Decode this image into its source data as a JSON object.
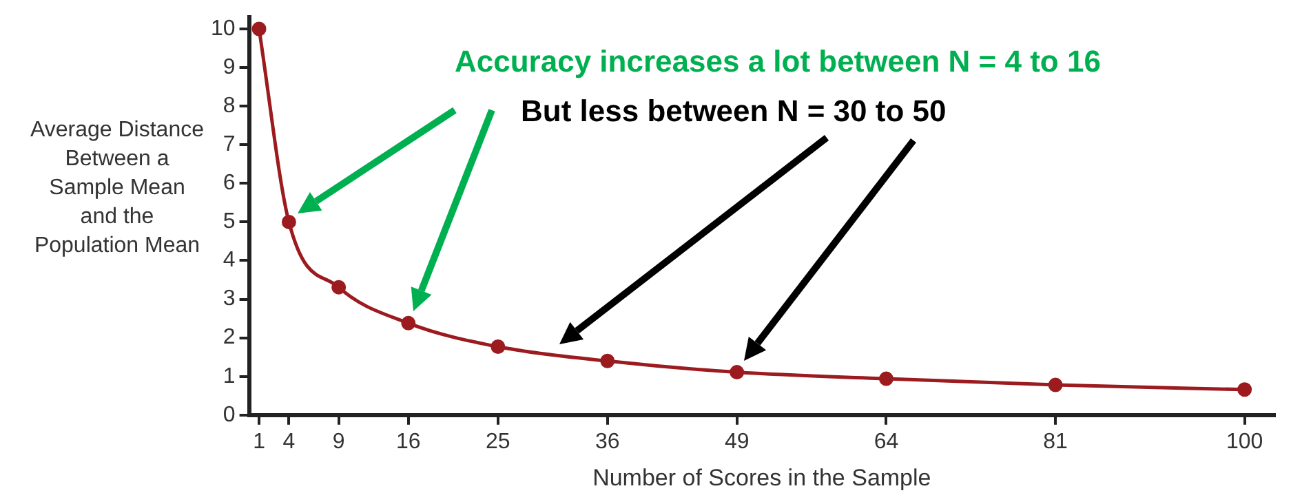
{
  "chart_data": {
    "type": "line",
    "xlabel": "Number of Scores in the Sample",
    "ylabel": "Average Distance Between a Sample Mean and the Population Mean",
    "annotations": [
      "Accuracy increases a lot between N = 4 to 16",
      "But less between N = 30 to 50"
    ],
    "x": [
      1,
      4,
      9,
      16,
      25,
      36,
      49,
      64,
      81,
      100
    ],
    "series": [
      {
        "color": "#9b1b1f",
        "values": [
          10,
          5,
          3.31,
          2.38,
          1.77,
          1.4,
          1.11,
          0.94,
          0.78,
          0.66
        ]
      }
    ],
    "xlim": [
      0,
      103
    ],
    "xticks": [
      1,
      4,
      9,
      16,
      25,
      36,
      49,
      64,
      81,
      100
    ],
    "ylim": [
      0,
      10.3
    ],
    "yticks": [
      0,
      1,
      2,
      3,
      4,
      5,
      6,
      7,
      8,
      9,
      10
    ],
    "grid": false,
    "legend": false,
    "marker": "circle",
    "line_style": "solid"
  }
}
